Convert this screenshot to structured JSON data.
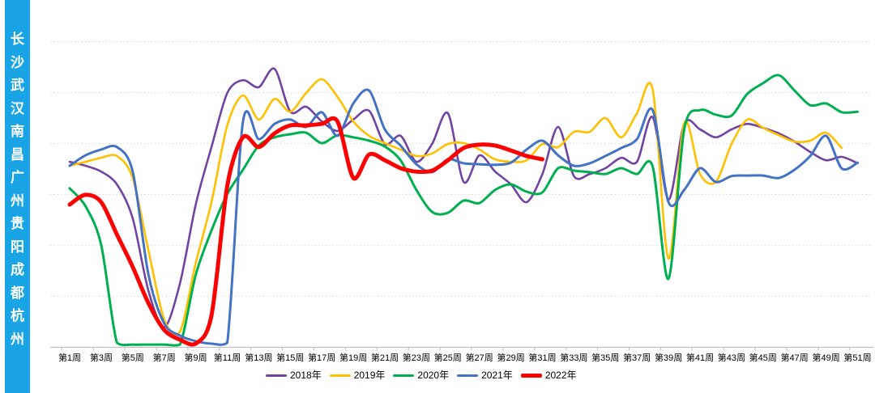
{
  "sidebar": {
    "bg": "#18A4E5",
    "chars": [
      "长",
      "沙",
      "武",
      "汉",
      "南",
      "昌",
      "广",
      "州",
      "贵",
      "阳",
      "成",
      "都",
      "杭",
      "州"
    ]
  },
  "legend": {
    "items": [
      {
        "label": "2018年",
        "color": "#7143A3",
        "thick": false
      },
      {
        "label": "2019年",
        "color": "#FFC000",
        "thick": false
      },
      {
        "label": "2020年",
        "color": "#00B050",
        "thick": false
      },
      {
        "label": "2021年",
        "color": "#4472C4",
        "thick": false
      },
      {
        "label": "2022年",
        "color": "#FF0000",
        "thick": true
      }
    ]
  },
  "chart_data": {
    "type": "line",
    "title": "",
    "x_axis": {
      "weeks_total": 52,
      "tick_labels": [
        "第1周",
        "第3周",
        "第5周",
        "第7周",
        "第9周",
        "第11周",
        "第13周",
        "第15周",
        "第17周",
        "第19周",
        "第21周",
        "第23周",
        "第25周",
        "第27周",
        "第29周",
        "第31周",
        "第33周",
        "第35周",
        "第37周",
        "第39周",
        "第41周",
        "第43周",
        "第45周",
        "第47周",
        "第49周",
        "第51周"
      ]
    },
    "y_axis": {
      "labels_visible": false,
      "ylim": [
        0,
        100
      ],
      "gridline_values": [
        16.7,
        33.3,
        50.0,
        66.7,
        83.3,
        100.0
      ],
      "grid_style": "dotted",
      "grid_color": "#D9D9D9",
      "axis_color": "#BFBFBF"
    },
    "legend_position": "bottom",
    "series": [
      {
        "name": "2018年",
        "color": "#7143A3",
        "line_width": 2.6,
        "start_week": 1,
        "values": [
          60.7,
          59.4,
          57.5,
          53.3,
          42.2,
          18.4,
          6.5,
          21.0,
          46.7,
          65.5,
          83.2,
          87.4,
          85.1,
          91.1,
          77.1,
          78.7,
          73.9,
          70.8,
          74.5,
          77.4,
          66.5,
          69.2,
          60.7,
          66.5,
          76.6,
          54.1,
          62.8,
          57.5,
          53.3,
          47.5,
          56.7,
          72.1,
          56.0,
          56.7,
          58.6,
          62.0,
          60.7,
          75.3,
          48.3,
          73.1,
          71.3,
          68.7,
          71.3,
          73.1,
          71.8,
          70.0,
          67.3,
          63.9,
          61.2,
          62.3,
          60.2
        ]
      },
      {
        "name": "2019年",
        "color": "#FFC000",
        "line_width": 2.6,
        "start_week": 1,
        "values": [
          59.4,
          60.7,
          62.0,
          62.6,
          55.4,
          31.6,
          9.1,
          5.2,
          27.6,
          47.5,
          72.6,
          82.4,
          74.5,
          81.3,
          77.1,
          83.2,
          87.7,
          81.9,
          73.9,
          69.2,
          66.8,
          64.7,
          62.6,
          63.4,
          66.5,
          66.8,
          64.7,
          61.5,
          60.7,
          61.2,
          66.5,
          65.5,
          70.5,
          70.5,
          75.0,
          68.7,
          76.6,
          84.3,
          29.0,
          73.4,
          56.7,
          54.1,
          66.5,
          74.5,
          71.8,
          69.4,
          67.3,
          67.6,
          70.2,
          65.2
        ]
      },
      {
        "name": "2020年",
        "color": "#00B050",
        "line_width": 3,
        "start_week": 1,
        "values": [
          52.0,
          46.2,
          33.5,
          1.5,
          0.9,
          0.9,
          0.9,
          0.9,
          23.7,
          38.2,
          50.1,
          58.1,
          66.0,
          68.7,
          69.7,
          70.2,
          66.8,
          69.4,
          68.7,
          67.6,
          65.7,
          61.2,
          51.5,
          44.3,
          44.0,
          48.0,
          47.2,
          51.5,
          53.3,
          50.9,
          50.7,
          58.6,
          57.8,
          57.3,
          56.7,
          58.6,
          56.7,
          59.1,
          22.4,
          71.3,
          77.6,
          76.1,
          75.8,
          82.9,
          86.4,
          89.0,
          84.0,
          79.2,
          79.8,
          76.9,
          77.1
        ]
      },
      {
        "name": "2021年",
        "color": "#4472C4",
        "line_width": 3,
        "start_week": 1,
        "values": [
          59.4,
          62.8,
          64.7,
          65.5,
          57.5,
          23.7,
          7.8,
          3.8,
          2.0,
          1.2,
          1.5,
          73.9,
          68.1,
          73.1,
          74.5,
          72.1,
          76.9,
          69.2,
          79.8,
          84.0,
          71.3,
          66.0,
          59.9,
          57.3,
          61.5,
          60.2,
          59.9,
          59.7,
          60.4,
          64.7,
          67.6,
          62.8,
          59.4,
          60.2,
          62.6,
          65.2,
          68.1,
          77.6,
          47.5,
          51.5,
          58.6,
          54.1,
          56.0,
          56.2,
          56.2,
          55.4,
          58.1,
          62.6,
          69.2,
          58.5,
          60.4
        ]
      },
      {
        "name": "2022年",
        "color": "#FF0000",
        "line_width": 5,
        "start_week": 1,
        "values": [
          46.7,
          49.9,
          47.5,
          36.9,
          26.3,
          14.4,
          5.7,
          2.5,
          1.2,
          10.4,
          52.8,
          68.7,
          65.5,
          70.0,
          72.6,
          72.6,
          73.1,
          73.9,
          55.4,
          63.1,
          61.2,
          58.6,
          57.5,
          57.8,
          61.2,
          65.2,
          66.3,
          66.0,
          64.4,
          62.6,
          61.5
        ]
      }
    ]
  }
}
